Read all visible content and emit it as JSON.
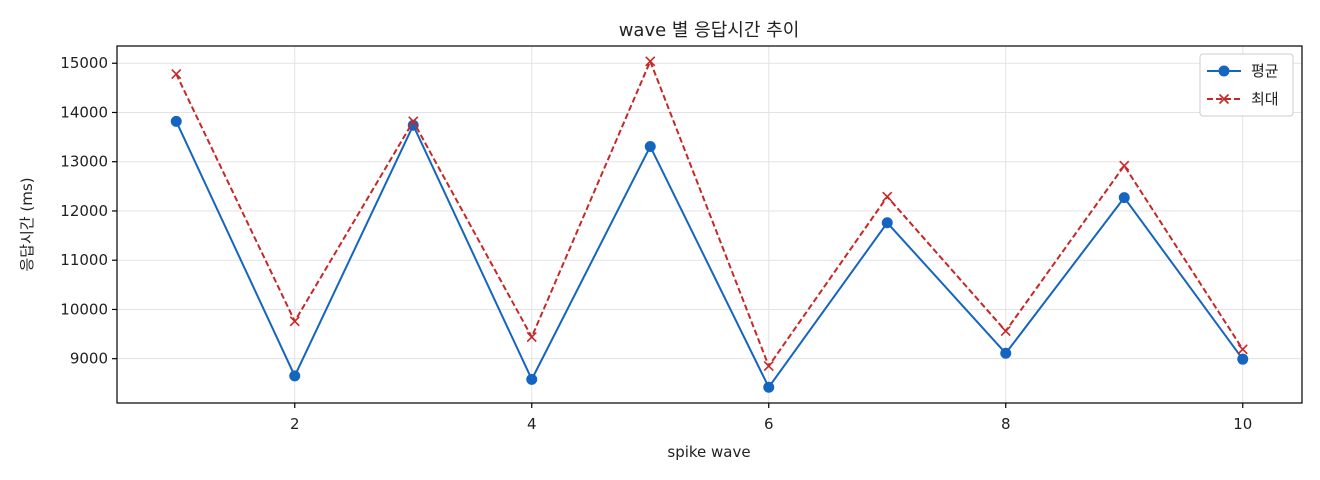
{
  "chart_data": {
    "type": "line",
    "title": "wave 별 응답시간 추이",
    "xlabel": "spike wave",
    "ylabel": "응답시간 (ms)",
    "x": [
      1,
      2,
      3,
      4,
      5,
      6,
      7,
      8,
      9,
      10
    ],
    "xlim": [
      0.5,
      10.5
    ],
    "ylim": [
      8100,
      15350
    ],
    "xticks": [
      2,
      4,
      6,
      8,
      10
    ],
    "yticks": [
      9000,
      10000,
      11000,
      12000,
      13000,
      14000,
      15000
    ],
    "grid": true,
    "legend_position": "top-right",
    "series": [
      {
        "name": "평균",
        "color": "#1565c0",
        "marker": "circle",
        "line_style": "solid",
        "values": [
          13820,
          8650,
          13740,
          8580,
          13310,
          8420,
          11760,
          9110,
          12270,
          8990
        ]
      },
      {
        "name": "최대",
        "color": "#c62828",
        "marker": "x",
        "line_style": "dashed",
        "values": [
          14780,
          9760,
          13820,
          9440,
          15040,
          8850,
          12290,
          9560,
          12920,
          9190
        ]
      }
    ]
  }
}
